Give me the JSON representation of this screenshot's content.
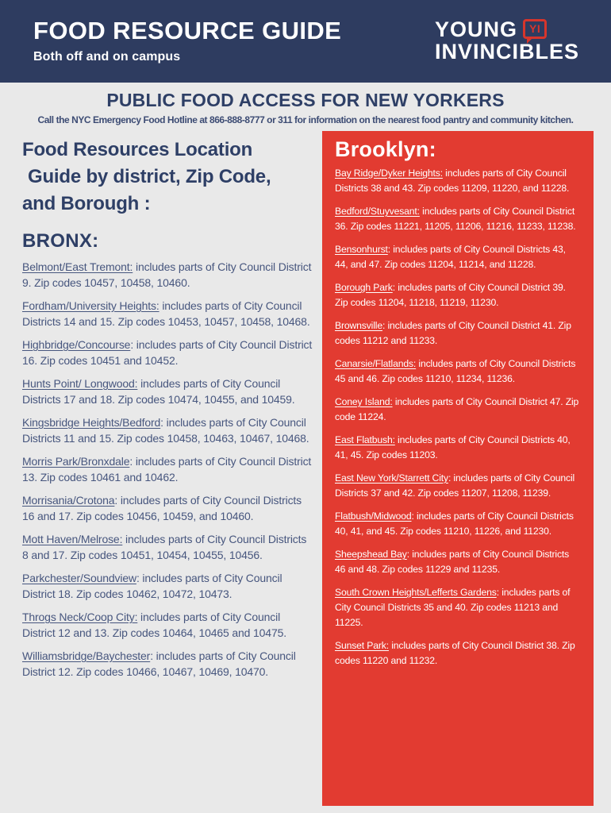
{
  "colors": {
    "banner_navy": "#2e3c60",
    "heading_navy": "#2e3f66",
    "body_navy": "#47567e",
    "panel_red": "#e23b31",
    "logo_red": "#d6352c",
    "page_gray": "#e9e9e9"
  },
  "header": {
    "title": "FOOD RESOURCE GUIDE",
    "subtitle": "Both off and on campus",
    "logo": {
      "word1": "YOUNG",
      "badge": "YI",
      "word2": "INVINCIBLES"
    }
  },
  "section": {
    "heading": "PUBLIC FOOD ACCESS FOR NEW YORKERS",
    "hotline": "Call the NYC Emergency Food Hotline at 866-888-8777 or 311 for information on the nearest food pantry and community kitchen."
  },
  "left": {
    "intro_lines": [
      "Food Resources Location",
      "Guide by district, Zip Code,",
      "and Borough :"
    ],
    "borough": "BRONX:",
    "items": [
      {
        "name": "Belmont/East Tremont:",
        "rest": " includes parts of City Council District 9. Zip codes 10457, 10458, 10460."
      },
      {
        "name": "Fordham/University Heights:",
        "rest": " includes parts of City Council Districts 14 and 15. Zip codes 10453, 10457, 10458, 10468."
      },
      {
        "name": "Highbridge/Concourse",
        "rest": ": includes parts of City Council District 16. Zip codes 10451 and 10452."
      },
      {
        "name": "Hunts Point/ Longwood:",
        "rest": " includes parts of City Council Districts 17 and 18. Zip codes 10474, 10455, and 10459."
      },
      {
        "name": "Kingsbridge Heights/Bedford",
        "rest": ": includes parts of City Council Districts 11 and 15. Zip codes 10458, 10463, 10467, 10468."
      },
      {
        "name": "Morris Park/Bronxdale",
        "rest": ": includes parts of City Council District 13. Zip codes 10461 and 10462."
      },
      {
        "name": "Morrisania/Crotona",
        "rest": ": includes parts of City Council Districts 16 and 17. Zip codes 10456, 10459, and 10460."
      },
      {
        "name": "Mott Haven/Melrose:",
        "rest": " includes parts of City Council Districts 8 and 17. Zip codes 10451, 10454, 10455, 10456."
      },
      {
        "name": "Parkchester/Soundview",
        "rest": ": includes parts of City Council District 18. Zip codes 10462, 10472, 10473."
      },
      {
        "name": "Throgs Neck/Coop City:",
        "rest": " includes parts of City Council District 12 and 13. Zip codes 10464, 10465 and 10475."
      },
      {
        "name": "Williamsbridge/Baychester",
        "rest": ": includes parts of City Council District 12. Zip codes 10466, 10467, 10469, 10470."
      }
    ]
  },
  "right": {
    "borough": "Brooklyn:",
    "items": [
      {
        "name": "Bay Ridge/Dyker Heights:",
        "rest": " includes parts of City Council Districts 38 and 43. Zip codes 11209, 11220, and 11228."
      },
      {
        "name": "Bedford/Stuyvesant:",
        "rest": " includes parts of City Council District 36. Zip codes 11221, 11205, 11206, 11216, 11233, 11238."
      },
      {
        "name": "Bensonhurst",
        "rest": ": includes parts of City Council Districts 43, 44, and 47. Zip codes 11204, 11214, and 11228."
      },
      {
        "name": "Borough Park",
        "rest": ": includes parts of City Council District 39. Zip codes 11204, 11218, 11219, 11230."
      },
      {
        "name": "Brownsville",
        "rest": ": includes parts of City Council District 41. Zip codes 11212 and 11233."
      },
      {
        "name": "Canarsie/Flatlands:",
        "rest": " includes parts of City Council Districts 45 and 46. Zip codes 11210, 11234, 11236."
      },
      {
        "name": "Coney Island:",
        "rest": " includes parts of City Council District 47. Zip code 11224."
      },
      {
        "name": "East Flatbush:",
        "rest": " includes parts of City Council Districts 40, 41, 45. Zip codes 11203."
      },
      {
        "name": "East New York/Starrett City",
        "rest": ": includes parts of City Council Districts 37 and 42. Zip codes 11207, 11208, 11239."
      },
      {
        "name": "Flatbush/Midwood",
        "rest": ": includes parts of City Council Districts 40, 41, and 45. Zip codes 11210, 11226, and 11230."
      },
      {
        "name": "Sheepshead Bay",
        "rest": ": includes parts of City Council Districts 46 and 48. Zip codes 11229 and 11235."
      },
      {
        "name": "South Crown Heights/Lefferts Gardens",
        "rest": ": includes parts of City Council Districts 35 and 40. Zip codes 11213 and 11225."
      },
      {
        "name": "Sunset Park:",
        "rest": " includes parts of City Council District 38. Zip codes 11220 and 11232."
      }
    ]
  }
}
